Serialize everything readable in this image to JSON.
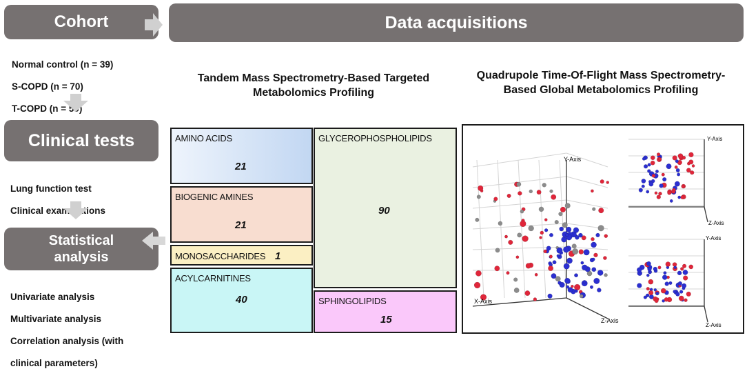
{
  "cohort": {
    "title": "Cohort",
    "groups": [
      "Normal control (n = 39)",
      "S-COPD (n = 70)",
      "T-COPD (n = 59)"
    ]
  },
  "clinical_tests": {
    "title": "Clinical tests",
    "items": [
      "Lung function test",
      "Clinical examinations"
    ]
  },
  "statistical": {
    "title_line1": "Statistical",
    "title_line2": "analysis",
    "items": [
      "Univariate analysis",
      "Multivariate analysis",
      "Correlation analysis (with",
      "clinical parameters)"
    ]
  },
  "data_acquisitions": {
    "title": "Data acquisitions"
  },
  "targeted": {
    "title_line1": "Tandem Mass Spectrometry-Based Targeted",
    "title_line2": "Metabolomics Profiling",
    "boxes": [
      {
        "label": "AMINO ACIDS",
        "value": "21",
        "color": "#c5d9f1"
      },
      {
        "label": "BIOGENIC AMINES",
        "value": "21",
        "color": "#f8ddd0"
      },
      {
        "label": "MONOSACCHARIDES",
        "value": "1",
        "color": "#fbefc3"
      },
      {
        "label": "ACYLCARNITINES",
        "value": "40",
        "color": "#c9f6f6"
      },
      {
        "label": "GLYCEROPHOSPHOLIPIDS",
        "value": "90",
        "color": "#eaf1e1"
      },
      {
        "label": "SPHINGOLIPIDS",
        "value": "15",
        "color": "#fac8fa"
      }
    ]
  },
  "global": {
    "title_line1": "Quadrupole Time-Of-Flight Mass Spectrometry-",
    "title_line2": "Based Global Metabolomics Profiling",
    "axis_labels": {
      "x": "X-Axis",
      "y": "Y-Axis",
      "z": "Z-Axis"
    },
    "point_colors": {
      "red": "#e0263a",
      "blue": "#2b2fd1",
      "gray": "#8c8c8c"
    }
  }
}
